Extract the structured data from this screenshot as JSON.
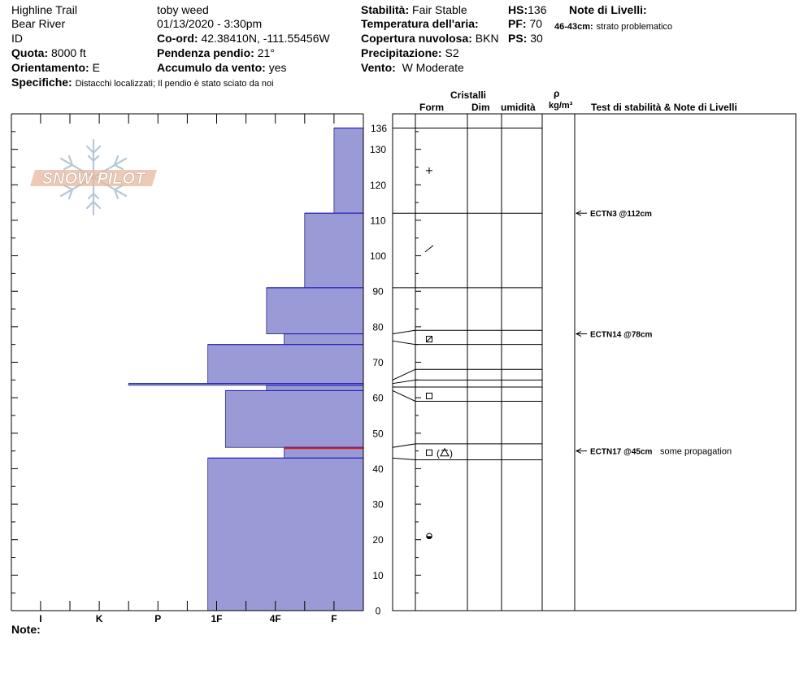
{
  "header": {
    "location": "Highline Trail",
    "observer": "toby weed",
    "range": "Bear River",
    "datetime": "01/13/2020 - 3:30pm",
    "id_label": "ID",
    "coord_label": "Co-ord:",
    "coord_value": "42.38410N, -111.55456W",
    "elev_label": "Quota:",
    "elev_value": "8000 ft",
    "slope_label": "Pendenza pendio:",
    "slope_value": "21°",
    "aspect_label": "Orientamento:",
    "aspect_value": "E",
    "wind_load_label": "Accumulo da vento:",
    "wind_load_value": "yes",
    "specifics_label": "Specifiche:",
    "specifics_value": "Distacchi localizzati;  Il pendio è stato sciato da noi",
    "stability_label": "Stabilità:",
    "stability_value": "Fair Stable",
    "air_temp_label": "Temperatura dell'aria:",
    "cloud_label": "Copertura nuvolosa:",
    "cloud_value": "BKN",
    "precip_label": "Precipitazione:",
    "precip_value": "S2",
    "wind_label": "Vento:",
    "wind_value": "W Moderate",
    "hs_label": "HS:",
    "hs_value": "136",
    "pf_label": "PF:",
    "pf_value": "70",
    "ps_label": "PS:",
    "ps_value": "30",
    "layer_notes_label": "Note di Livelli:",
    "layer_note_range": "46-43cm:",
    "layer_note_text": "strato problematico"
  },
  "footer": {
    "notes_label": "Note:"
  },
  "logo_text": "SNOW PILOT",
  "columns": {
    "crystals": "Cristalli",
    "form": "Form",
    "size": "Dim",
    "moisture": "umidità",
    "rho": "ρ",
    "density_unit": "kg/m³",
    "tests": "Test di stabilità & Note di Livelli"
  },
  "chart_data": {
    "type": "bar",
    "orientation": "horizontal",
    "ylim": [
      0,
      140
    ],
    "y_ticks": [
      0,
      10,
      20,
      30,
      40,
      50,
      60,
      70,
      80,
      90,
      100,
      110,
      120,
      130
    ],
    "top_label": "136",
    "hardness_categories": [
      "I",
      "K",
      "P",
      "1F",
      "4F",
      "F"
    ],
    "layers": [
      {
        "top": 136,
        "bottom": 112,
        "hardness": 1.0
      },
      {
        "top": 112,
        "bottom": 91,
        "hardness": 2.0
      },
      {
        "top": 91,
        "bottom": 78,
        "hardness": 3.3
      },
      {
        "top": 78,
        "bottom": 75,
        "hardness": 2.7
      },
      {
        "top": 75,
        "bottom": 64,
        "hardness": 5.3
      },
      {
        "top": 64,
        "bottom": 63.5,
        "hardness": 8.0
      },
      {
        "top": 63.5,
        "bottom": 62,
        "hardness": 3.3
      },
      {
        "top": 62,
        "bottom": 46,
        "hardness": 4.7
      },
      {
        "top": 46,
        "bottom": 43,
        "hardness": 2.7
      },
      {
        "top": 43,
        "bottom": 0,
        "hardness": 5.3
      }
    ],
    "problem_layer": {
      "top": 46,
      "bottom": 45.5,
      "color": "#d81b1b"
    },
    "bar_fill": "#9a9ad6",
    "bar_edge": "#1f1fc0",
    "grain_symbols": [
      {
        "y": 124,
        "symbol": "+"
      },
      {
        "y": 102,
        "symbol": "/"
      },
      {
        "y": 76.5,
        "symbol": "box-slash"
      },
      {
        "y": 60.5,
        "symbol": "box"
      },
      {
        "y": 44.5,
        "symbol": "box-paren-a"
      },
      {
        "y": 21,
        "symbol": "half-dot"
      }
    ],
    "stability_tests": [
      {
        "y": 112,
        "label": "ECTN3 @112cm",
        "note": ""
      },
      {
        "y": 78,
        "label": "ECTN14 @78cm",
        "note": ""
      },
      {
        "y": 45,
        "label": "ECTN17 @45cm",
        "note": "some propagation"
      }
    ]
  }
}
